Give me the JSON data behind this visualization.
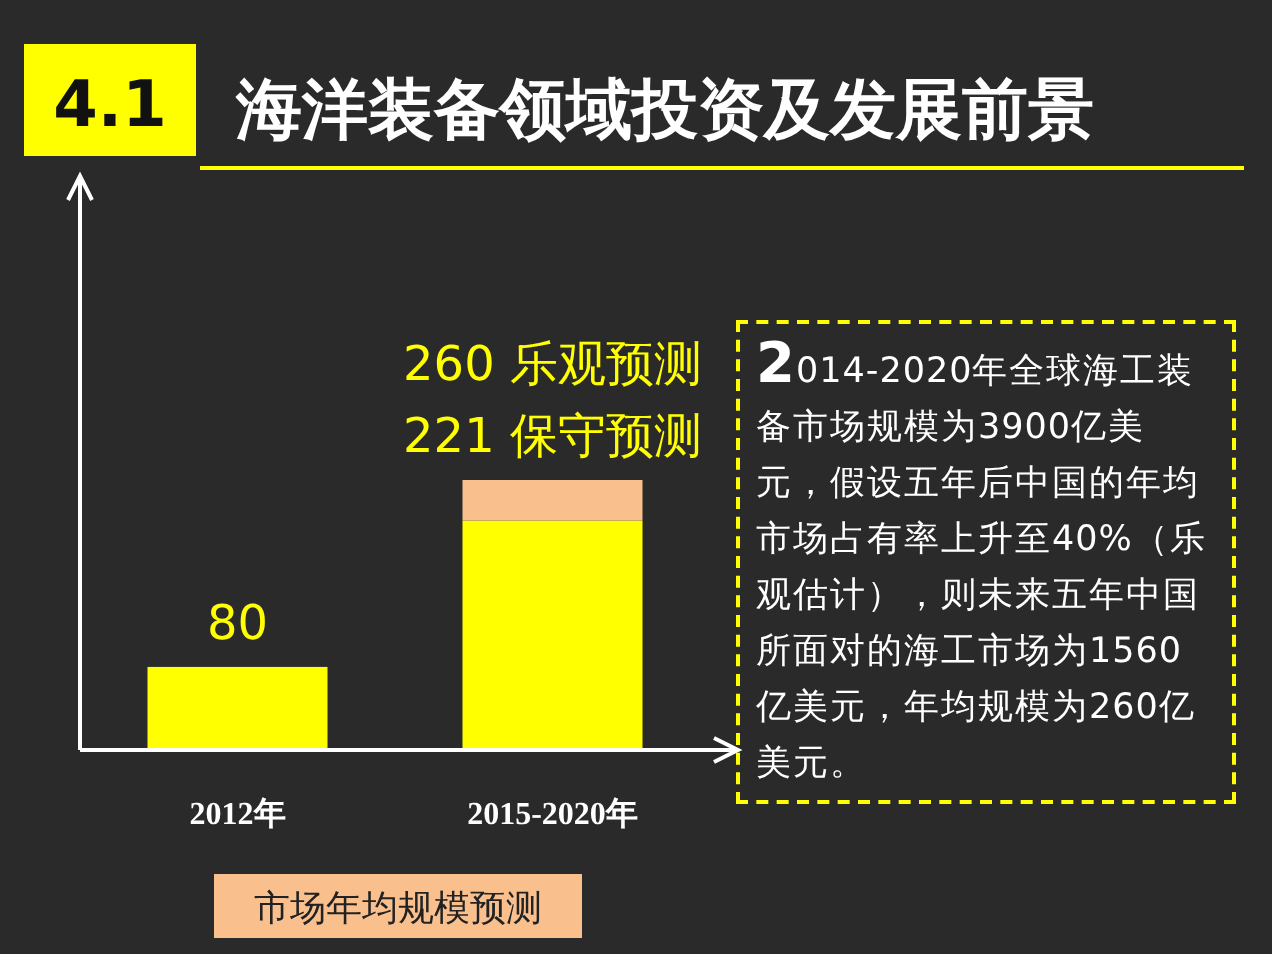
{
  "chart_data": {
    "type": "bar",
    "title": "海洋装备领域投资及发展前景",
    "xlabel": "市场年均规模预测",
    "stacked": true,
    "categories": [
      "2012年",
      "2015-2020年"
    ],
    "series": [
      {
        "color": "#ffff00",
        "values": [
          80,
          221
        ],
        "value_labels": [
          "80",
          "221 保守预测"
        ]
      },
      {
        "color": "#f9c08e",
        "values": [
          null,
          39
        ]
      }
    ],
    "totals": [
      null,
      "260 乐观预测"
    ],
    "annotations": [
      "4.1",
      "2014-2020年全球海工装备市场规模为3900亿美元，假设五年后中国的年均市场占有率上升至40%（乐观估计），则未来五年中国所面对的海工市场为1560亿美元，年均规模为260亿美元。"
    ]
  }
}
